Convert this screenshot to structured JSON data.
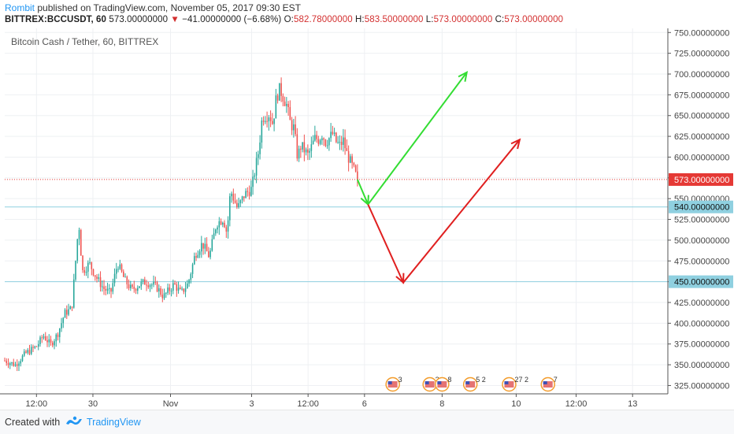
{
  "header": {
    "author": "Rombit",
    "published_text": "published on TradingView.com, November 05, 2017 09:30 EST",
    "symbol": "BITTREX:BCCUSDT, 60",
    "last": "573.00000000",
    "change_arrow": "▼",
    "change": "−41.00000000 (−6.68%)",
    "o_label": "O:",
    "o_value": "582.78000000",
    "h_label": "H:",
    "h_value": "583.50000000",
    "l_label": "L:",
    "l_value": "573.00000000",
    "c_label": "C:",
    "c_value": "573.00000000"
  },
  "footer": {
    "created_with": "Created with",
    "brand": "TradingView"
  },
  "colors": {
    "up": "#26a69a",
    "down": "#ef5350",
    "hline": "#8fd0e0",
    "price_line": "#e53935",
    "arrow_green": "#33dd33",
    "arrow_red": "#e02020",
    "axis_text": "#444444"
  },
  "chart_data": {
    "type": "candlestick",
    "title": "Bitcoin Cash / Tether, 60, BITTREX",
    "ylim": [
      315,
      755
    ],
    "xlim": [
      0,
      188
    ],
    "x_ticks": [
      {
        "x": 9,
        "label": "12:00"
      },
      {
        "x": 25,
        "label": "30"
      },
      {
        "x": 47,
        "label": "Nov"
      },
      {
        "x": 70,
        "label": "3"
      },
      {
        "x": 86,
        "label": "12:00"
      },
      {
        "x": 102,
        "label": "6"
      },
      {
        "x": 124,
        "label": "8"
      },
      {
        "x": 145,
        "label": "10"
      },
      {
        "x": 162,
        "label": "12:00"
      },
      {
        "x": 178,
        "label": "13"
      }
    ],
    "y_ticks": [
      325,
      350,
      375,
      400,
      425,
      450,
      475,
      500,
      525,
      550,
      575,
      600,
      625,
      650,
      675,
      700,
      725,
      750
    ],
    "y_tick_decimals": 8,
    "last_price": 573,
    "horizontal_lines": [
      540,
      450
    ],
    "close_path": [
      [
        0,
        355
      ],
      [
        3,
        350
      ],
      [
        6,
        364
      ],
      [
        9,
        372
      ],
      [
        11,
        385
      ],
      [
        13,
        374
      ],
      [
        15,
        387
      ],
      [
        17,
        412
      ],
      [
        19,
        418
      ],
      [
        20,
        470
      ],
      [
        21,
        522
      ],
      [
        22,
        462
      ],
      [
        24,
        472
      ],
      [
        26,
        455
      ],
      [
        28,
        442
      ],
      [
        30,
        436
      ],
      [
        32,
        472
      ],
      [
        34,
        452
      ],
      [
        36,
        440
      ],
      [
        38,
        446
      ],
      [
        40,
        450
      ],
      [
        43,
        444
      ],
      [
        45,
        432
      ],
      [
        48,
        447
      ],
      [
        50,
        436
      ],
      [
        52,
        448
      ],
      [
        54,
        483
      ],
      [
        56,
        496
      ],
      [
        58,
        480
      ],
      [
        60,
        520
      ],
      [
        62,
        526
      ],
      [
        63,
        508
      ],
      [
        64,
        560
      ],
      [
        66,
        538
      ],
      [
        68,
        555
      ],
      [
        70,
        562
      ],
      [
        72,
        608
      ],
      [
        73,
        648
      ],
      [
        75,
        652
      ],
      [
        76,
        640
      ],
      [
        77,
        672
      ],
      [
        78,
        682
      ],
      [
        80,
        662
      ],
      [
        81,
        640
      ],
      [
        82,
        635
      ],
      [
        83,
        600
      ],
      [
        84,
        614
      ],
      [
        86,
        602
      ],
      [
        88,
        623
      ],
      [
        89,
        621
      ],
      [
        90,
        628
      ],
      [
        91,
        618
      ],
      [
        93,
        628
      ],
      [
        94,
        618
      ],
      [
        95,
        614
      ],
      [
        96,
        620
      ],
      [
        97,
        604
      ],
      [
        99,
        584
      ],
      [
        100,
        573
      ]
    ],
    "annotations": {
      "green_path": [
        [
          100,
          573
        ],
        [
          103,
          543
        ],
        [
          131,
          702
        ]
      ],
      "red_path": [
        [
          103,
          543
        ],
        [
          113,
          449
        ],
        [
          146,
          621
        ]
      ]
    },
    "event_markers": [
      {
        "x": 110,
        "label": "3"
      },
      {
        "x": 120.5,
        "label": "2"
      },
      {
        "x": 124,
        "label": "8"
      },
      {
        "x": 132,
        "label": "5 2"
      },
      {
        "x": 143,
        "label": "27 2"
      },
      {
        "x": 154,
        "label": "7"
      }
    ]
  }
}
